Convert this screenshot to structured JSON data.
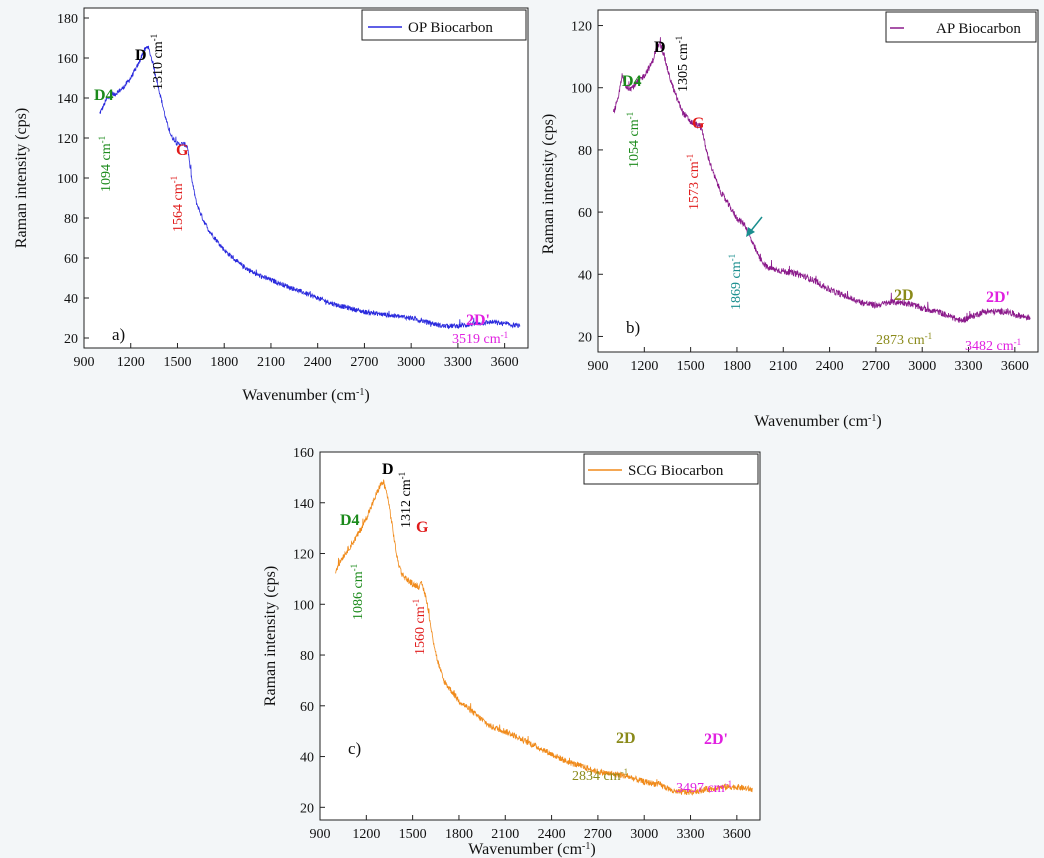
{
  "chart_data": [
    {
      "type": "line",
      "panel_label": "a)",
      "xlabel": "Wavenumber (cm",
      "xlabel_sup": "-1",
      "xlabel_end": ")",
      "ylabel": "Raman intensity (cps)",
      "xlim": [
        900,
        3750
      ],
      "ylim": [
        15,
        185
      ],
      "xticks": [
        900,
        1200,
        1500,
        1800,
        2100,
        2400,
        2700,
        3000,
        3300,
        3600
      ],
      "yticks": [
        20,
        40,
        60,
        80,
        100,
        120,
        140,
        160,
        180
      ],
      "grid": false,
      "legend_position": "top-right",
      "series": [
        {
          "name": "OP Biocarbon",
          "color": "#2a2add",
          "x": [
            1000,
            1050,
            1100,
            1150,
            1200,
            1250,
            1280,
            1310,
            1340,
            1370,
            1400,
            1430,
            1460,
            1500,
            1540,
            1564,
            1590,
            1620,
            1660,
            1700,
            1800,
            1900,
            2000,
            2100,
            2200,
            2300,
            2400,
            2500,
            2600,
            2700,
            2800,
            2900,
            3000,
            3100,
            3200,
            3300,
            3400,
            3519,
            3600,
            3700
          ],
          "y": [
            132,
            140,
            142,
            145,
            150,
            157,
            163,
            166,
            158,
            148,
            138,
            128,
            121,
            117,
            117,
            116,
            100,
            88,
            80,
            74,
            64,
            57,
            52,
            49,
            46,
            43,
            40,
            37,
            35,
            33,
            32,
            31,
            30,
            28,
            26,
            26,
            27,
            28,
            27,
            26
          ],
          "noise": 1.2
        }
      ],
      "annotations": [
        {
          "name": "D4",
          "position": "1094 cm",
          "color": "#1b8a1b",
          "x": 1094
        },
        {
          "name": "D",
          "position": "1310 cm",
          "color": "#000000",
          "x": 1310
        },
        {
          "name": "G",
          "position": "1564 cm",
          "color": "#e01b1b",
          "x": 1564
        },
        {
          "name": "2D'",
          "position": "3519 cm",
          "color": "#e020e0",
          "x": 3519
        }
      ]
    },
    {
      "type": "line",
      "panel_label": "b)",
      "xlabel": "Wavenumber (cm",
      "xlabel_sup": "-1",
      "xlabel_end": ")",
      "ylabel": "Raman intensity (cps)",
      "xlim": [
        900,
        3750
      ],
      "ylim": [
        15,
        125
      ],
      "xticks": [
        900,
        1200,
        1500,
        1800,
        2100,
        2400,
        2700,
        3000,
        3300,
        3600
      ],
      "yticks": [
        20,
        40,
        60,
        80,
        100,
        120
      ],
      "grid": false,
      "legend_position": "top-right",
      "series": [
        {
          "name": "AP Biocarbon",
          "color": "#8b1a8b",
          "x": [
            1000,
            1030,
            1054,
            1080,
            1120,
            1160,
            1200,
            1250,
            1280,
            1305,
            1330,
            1360,
            1400,
            1450,
            1500,
            1540,
            1573,
            1600,
            1650,
            1700,
            1750,
            1800,
            1850,
            1869,
            1900,
            1950,
            2000,
            2100,
            2200,
            2300,
            2400,
            2500,
            2600,
            2700,
            2800,
            2873,
            2950,
            3000,
            3100,
            3200,
            3250,
            3300,
            3400,
            3482,
            3550,
            3600,
            3700
          ],
          "y": [
            92,
            96,
            104,
            100,
            100,
            102,
            104,
            108,
            113,
            114,
            110,
            104,
            98,
            92,
            89,
            88,
            87,
            80,
            72,
            66,
            62,
            58,
            56,
            54,
            50,
            45,
            42,
            41,
            40,
            38,
            35,
            33,
            31,
            30,
            31,
            31,
            30,
            29,
            28,
            26,
            25,
            26,
            28,
            28,
            28,
            27,
            26
          ],
          "noise": 1.0
        }
      ],
      "annotations": [
        {
          "name": "D4",
          "position": "1054 cm",
          "color": "#1b8a1b",
          "x": 1054
        },
        {
          "name": "D",
          "position": "1305 cm",
          "color": "#000000",
          "x": 1305
        },
        {
          "name": "G",
          "position": "1573 cm",
          "color": "#e01b1b",
          "x": 1573
        },
        {
          "name": "",
          "position": "1869 cm",
          "color": "#1a8e8e",
          "x": 1869
        },
        {
          "name": "2D",
          "position": "2873 cm",
          "color": "#8a8a1a",
          "x": 2873
        },
        {
          "name": "2D'",
          "position": "3482 cm",
          "color": "#e020e0",
          "x": 3482
        }
      ]
    },
    {
      "type": "line",
      "panel_label": "c)",
      "xlabel": "Wavenumber (cm",
      "xlabel_sup": "-1",
      "xlabel_end": ")",
      "ylabel": "Raman intensity (cps)",
      "xlim": [
        900,
        3750
      ],
      "ylim": [
        15,
        160
      ],
      "xticks": [
        900,
        1200,
        1500,
        1800,
        2100,
        2400,
        2700,
        3000,
        3300,
        3600
      ],
      "yticks": [
        20,
        40,
        60,
        80,
        100,
        120,
        140,
        160
      ],
      "grid": false,
      "legend_position": "top-right",
      "series": [
        {
          "name": "SCG Biocarbon",
          "color": "#f08a1a",
          "x": [
            1000,
            1040,
            1086,
            1120,
            1160,
            1200,
            1250,
            1290,
            1312,
            1340,
            1370,
            1400,
            1430,
            1460,
            1500,
            1540,
            1560,
            1590,
            1620,
            1660,
            1700,
            1800,
            1900,
            2000,
            2100,
            2200,
            2300,
            2400,
            2500,
            2600,
            2700,
            2800,
            2834,
            2900,
            3000,
            3100,
            3200,
            3300,
            3400,
            3497,
            3600,
            3700
          ],
          "y": [
            113,
            118,
            122,
            125,
            129,
            134,
            141,
            147,
            148,
            142,
            130,
            118,
            112,
            110,
            108,
            107,
            108,
            102,
            90,
            78,
            70,
            62,
            57,
            52,
            50,
            47,
            44,
            41,
            38,
            36,
            34,
            33,
            33,
            32,
            30,
            29,
            26,
            26,
            27,
            28,
            28,
            27
          ],
          "noise": 1.2
        }
      ],
      "annotations": [
        {
          "name": "D4",
          "position": "1086 cm",
          "color": "#1b8a1b",
          "x": 1086
        },
        {
          "name": "D",
          "position": "1312 cm",
          "color": "#000000",
          "x": 1312
        },
        {
          "name": "G",
          "position": "1560 cm",
          "color": "#e01b1b",
          "x": 1560
        },
        {
          "name": "2D",
          "position": "2834 cm",
          "color": "#8a8a1a",
          "x": 2834
        },
        {
          "name": "2D'",
          "position": "3497 cm",
          "color": "#e020e0",
          "x": 3497
        }
      ],
      "unit_sup": "-1"
    }
  ]
}
